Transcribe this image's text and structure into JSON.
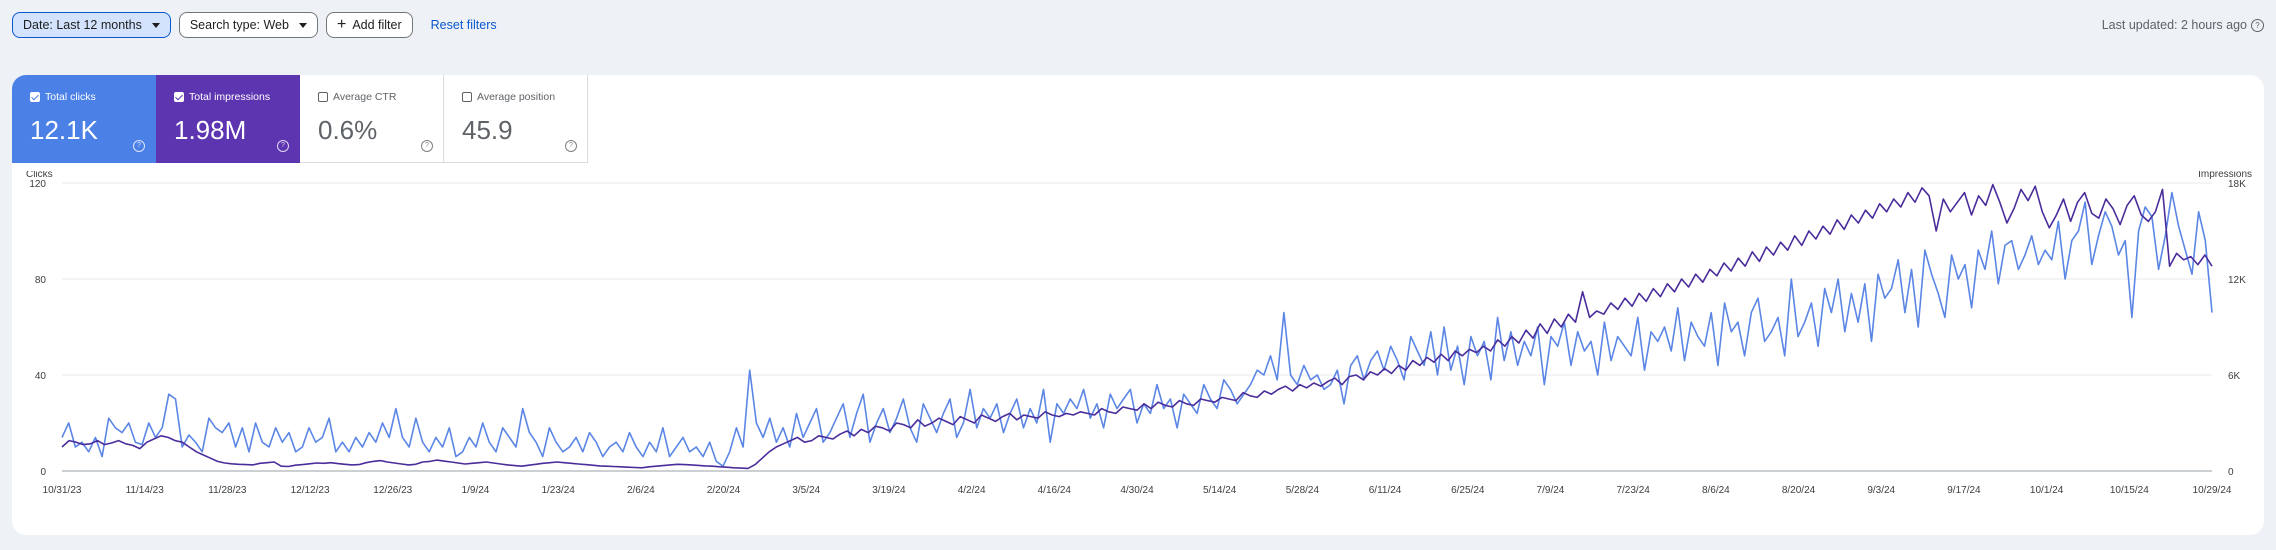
{
  "filters": {
    "date_label": "Date: Last 12 months",
    "search_type_label": "Search type: Web",
    "add_filter_label": "Add filter",
    "reset_label": "Reset filters"
  },
  "last_updated": "Last updated: 2 hours ago",
  "metrics": [
    {
      "label": "Total clicks",
      "value": "12.1K",
      "checked": true,
      "color": "#4b80e7"
    },
    {
      "label": "Total impressions",
      "value": "1.98M",
      "checked": true,
      "color": "#5e35b1"
    },
    {
      "label": "Average CTR",
      "value": "0.6%",
      "checked": false
    },
    {
      "label": "Average position",
      "value": "45.9",
      "checked": false
    }
  ],
  "chart_data": {
    "type": "line",
    "left_axis_label": "Clicks",
    "right_axis_label": "Impressions",
    "left_ticks": [
      "0",
      "40",
      "80",
      "120"
    ],
    "right_ticks": [
      "0",
      "6K",
      "12K",
      "18K"
    ],
    "ylim_left": [
      0,
      120
    ],
    "ylim_right": [
      0,
      18000
    ],
    "x_tick_labels": [
      "10/31/23",
      "11/14/23",
      "11/28/23",
      "12/12/23",
      "12/26/23",
      "1/9/24",
      "1/23/24",
      "2/6/24",
      "2/20/24",
      "3/5/24",
      "3/19/24",
      "4/2/24",
      "4/16/24",
      "4/30/24",
      "5/14/24",
      "5/28/24",
      "6/11/24",
      "6/25/24",
      "7/9/24",
      "7/23/24",
      "8/6/24",
      "8/20/24",
      "9/3/24",
      "9/17/24",
      "10/1/24",
      "10/15/24",
      "10/29/24"
    ],
    "series": [
      {
        "name": "Total clicks",
        "axis": "left",
        "color": "#5b86e5",
        "values": [
          14,
          20,
          10,
          12,
          8,
          14,
          6,
          22,
          18,
          16,
          20,
          12,
          11,
          20,
          14,
          18,
          32,
          30,
          10,
          15,
          12,
          8,
          22,
          18,
          16,
          20,
          10,
          18,
          8,
          20,
          12,
          10,
          18,
          12,
          16,
          8,
          10,
          18,
          12,
          14,
          22,
          8,
          12,
          8,
          14,
          10,
          16,
          12,
          20,
          14,
          26,
          14,
          10,
          22,
          12,
          8,
          14,
          10,
          18,
          6,
          8,
          14,
          10,
          20,
          12,
          8,
          18,
          14,
          10,
          26,
          16,
          12,
          6,
          18,
          12,
          8,
          10,
          14,
          8,
          16,
          12,
          6,
          10,
          12,
          8,
          16,
          10,
          6,
          12,
          8,
          18,
          6,
          10,
          14,
          8,
          10,
          6,
          12,
          4,
          2,
          8,
          18,
          10,
          42,
          20,
          14,
          22,
          12,
          18,
          10,
          24,
          14,
          20,
          26,
          12,
          16,
          22,
          28,
          14,
          24,
          32,
          12,
          20,
          26,
          16,
          22,
          30,
          18,
          12,
          28,
          22,
          16,
          24,
          30,
          14,
          20,
          34,
          18,
          26,
          22,
          28,
          16,
          24,
          30,
          18,
          26,
          20,
          34,
          12,
          28,
          24,
          30,
          26,
          34,
          22,
          28,
          18,
          32,
          26,
          30,
          34,
          20,
          28,
          24,
          36,
          26,
          30,
          18,
          32,
          28,
          24,
          36,
          30,
          26,
          38,
          34,
          28,
          32,
          36,
          42,
          40,
          48,
          38,
          66,
          40,
          36,
          44,
          38,
          40,
          34,
          36,
          42,
          28,
          44,
          48,
          38,
          46,
          50,
          42,
          52,
          46,
          38,
          56,
          50,
          44,
          58,
          40,
          60,
          42,
          52,
          36,
          56,
          48,
          54,
          38,
          64,
          46,
          58,
          44,
          54,
          48,
          60,
          36,
          56,
          52,
          62,
          44,
          58,
          50,
          54,
          40,
          62,
          46,
          56,
          52,
          48,
          64,
          42,
          58,
          54,
          60,
          50,
          68,
          46,
          62,
          56,
          52,
          66,
          44,
          70,
          58,
          62,
          48,
          66,
          72,
          54,
          58,
          64,
          48,
          80,
          56,
          62,
          70,
          52,
          76,
          66,
          80,
          58,
          74,
          62,
          78,
          54,
          82,
          72,
          76,
          88,
          66,
          84,
          60,
          92,
          82,
          74,
          64,
          90,
          80,
          86,
          68,
          92,
          84,
          100,
          78,
          94,
          96,
          84,
          90,
          98,
          86,
          92,
          88,
          104,
          80,
          96,
          100,
          112,
          86,
          98,
          108,
          102,
          90,
          96,
          64,
          100,
          110,
          106,
          84,
          98,
          116,
          102,
          92,
          82,
          108,
          96,
          66
        ]
      },
      {
        "name": "Total impressions",
        "axis": "right",
        "color": "#4a2d9b",
        "values": [
          1500,
          1900,
          1800,
          1650,
          1700,
          1900,
          1650,
          1750,
          1900,
          1700,
          1600,
          1400,
          1800,
          2000,
          2200,
          2100,
          1900,
          1800,
          1500,
          1200,
          1000,
          800,
          600,
          500,
          450,
          420,
          400,
          380,
          480,
          520,
          560,
          300,
          280,
          360,
          400,
          450,
          500,
          480,
          520,
          460,
          420,
          380,
          400,
          520,
          600,
          650,
          560,
          500,
          440,
          380,
          420,
          560,
          600,
          680,
          620,
          560,
          500,
          440,
          480,
          520,
          560,
          500,
          440,
          380,
          340,
          300,
          360,
          420,
          480,
          520,
          560,
          520,
          480,
          440,
          400,
          360,
          320,
          300,
          280,
          260,
          240,
          220,
          200,
          260,
          300,
          340,
          380,
          420,
          400,
          380,
          350,
          320,
          300,
          260,
          240,
          200,
          180,
          160,
          400,
          800,
          1200,
          1500,
          1700,
          1900,
          2100,
          1800,
          1900,
          2200,
          2100,
          2000,
          2300,
          2500,
          2200,
          2600,
          2400,
          2800,
          2700,
          2500,
          3000,
          2900,
          2700,
          3200,
          2800,
          3000,
          3300,
          3100,
          2900,
          3400,
          3200,
          3000,
          3500,
          3300,
          3100,
          3400,
          3600,
          3200,
          3500,
          3400,
          3300,
          3700,
          3500,
          3400,
          3600,
          3500,
          3700,
          3600,
          3500,
          3900,
          3700,
          3600,
          4000,
          3900,
          3800,
          4200,
          3900,
          4300,
          4100,
          4000,
          4400,
          4200,
          4100,
          4500,
          4400,
          4300,
          4600,
          4500,
          4400,
          4900,
          4700,
          4600,
          5000,
          4800,
          5100,
          5300,
          5000,
          5400,
          5200,
          5500,
          5300,
          5600,
          5800,
          5400,
          5900,
          6000,
          5700,
          6200,
          6000,
          6400,
          6100,
          6600,
          6300,
          6900,
          6600,
          7100,
          6800,
          7300,
          6900,
          7500,
          7200,
          7600,
          7400,
          7800,
          7500,
          8200,
          7800,
          8400,
          8000,
          8800,
          8300,
          9200,
          8600,
          9500,
          9000,
          9800,
          9300,
          11200,
          9600,
          10000,
          9800,
          10500,
          10100,
          10800,
          10300,
          11100,
          10600,
          11400,
          10900,
          11700,
          11200,
          12000,
          11500,
          12300,
          11800,
          12600,
          12200,
          13000,
          12500,
          13300,
          12800,
          13700,
          13100,
          14000,
          13500,
          14300,
          13800,
          14700,
          14100,
          15000,
          14500,
          15300,
          14800,
          15700,
          15100,
          16000,
          15500,
          16300,
          15800,
          16700,
          16200,
          17000,
          16500,
          17400,
          16800,
          17700,
          17200,
          15000,
          17000,
          16200,
          16800,
          17400,
          16000,
          17200,
          16600,
          17900,
          16800,
          15500,
          16400,
          17600,
          16900,
          17800,
          16200,
          15200,
          16000,
          17000,
          15600,
          16800,
          17400,
          16100,
          15800,
          17000,
          16400,
          15400,
          16600,
          17200,
          16000,
          15600,
          16200,
          17600,
          12800,
          13600,
          13200,
          13400,
          12900,
          13500,
          12800
        ]
      }
    ]
  }
}
